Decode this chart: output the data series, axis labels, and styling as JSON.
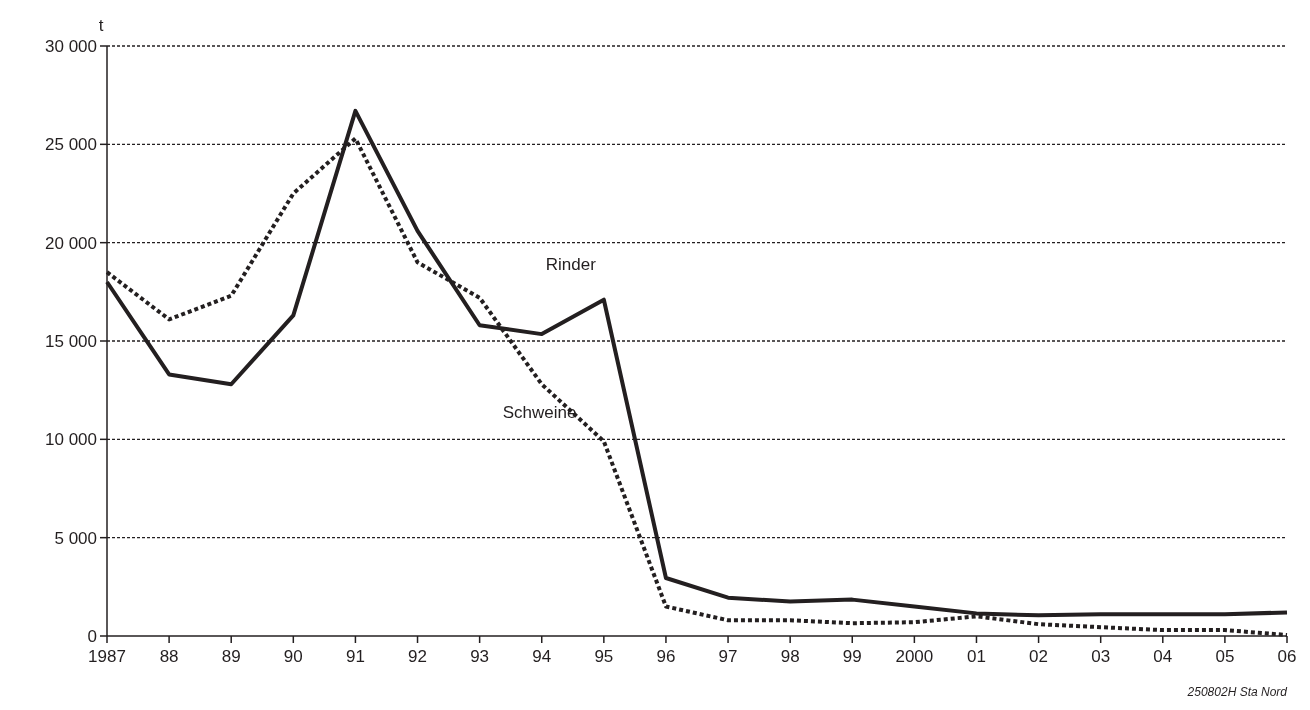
{
  "chart_data": {
    "type": "line",
    "ylabel": "t",
    "annotations": [
      "250802H Sta Nord"
    ],
    "x": [
      1987,
      1988,
      1989,
      1990,
      1991,
      1992,
      1993,
      1994,
      1995,
      1996,
      1997,
      1998,
      1999,
      2000,
      2001,
      2002,
      2003,
      2004,
      2005,
      2006
    ],
    "xlim": [
      1987,
      2006
    ],
    "xticks": [
      {
        "value": 1987,
        "label": "1987"
      },
      {
        "value": 1988,
        "label": "88"
      },
      {
        "value": 1989,
        "label": "89"
      },
      {
        "value": 1990,
        "label": "90"
      },
      {
        "value": 1991,
        "label": "91"
      },
      {
        "value": 1992,
        "label": "92"
      },
      {
        "value": 1993,
        "label": "93"
      },
      {
        "value": 1994,
        "label": "94"
      },
      {
        "value": 1995,
        "label": "95"
      },
      {
        "value": 1996,
        "label": "96"
      },
      {
        "value": 1997,
        "label": "97"
      },
      {
        "value": 1998,
        "label": "98"
      },
      {
        "value": 1999,
        "label": "99"
      },
      {
        "value": 2000,
        "label": "2000"
      },
      {
        "value": 2001,
        "label": "01"
      },
      {
        "value": 2002,
        "label": "02"
      },
      {
        "value": 2003,
        "label": "03"
      },
      {
        "value": 2004,
        "label": "04"
      },
      {
        "value": 2005,
        "label": "05"
      },
      {
        "value": 2006,
        "label": "06"
      }
    ],
    "ylim": [
      0,
      30000
    ],
    "yticks": [
      0,
      {
        "value": 5000,
        "label": "5 000"
      },
      {
        "value": 10000,
        "label": "10 000"
      },
      {
        "value": 15000,
        "label": "15 000"
      },
      {
        "value": 20000,
        "label": "20 000"
      },
      {
        "value": 25000,
        "label": "25 000"
      },
      {
        "value": 30000,
        "label": "30 000"
      }
    ],
    "grid": "y",
    "marker": "none",
    "series": [
      {
        "name": "Rinder",
        "color": "#231f20",
        "line_style": "solid",
        "values": [
          18000,
          13300,
          12800,
          16300,
          26700,
          20600,
          15800,
          15350,
          17100,
          2950,
          1950,
          1750,
          1850,
          1500,
          1150,
          1050,
          1100,
          1100,
          1100,
          1200
        ]
      },
      {
        "name": "Schweine",
        "color": "#231f20",
        "line_style": "dotted",
        "values": [
          18500,
          16100,
          17300,
          22500,
          25300,
          19000,
          17200,
          12800,
          9900,
          1500,
          800,
          800,
          650,
          700,
          1000,
          600,
          450,
          300,
          300,
          50
        ]
      }
    ]
  }
}
